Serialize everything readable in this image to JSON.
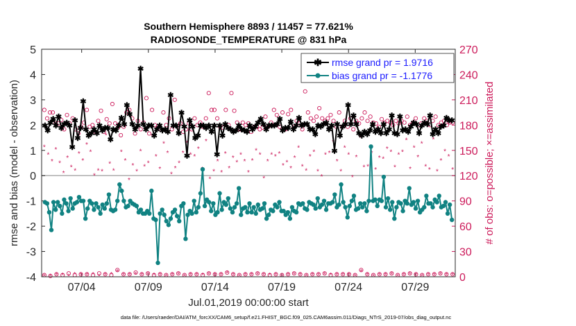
{
  "chart_data": {
    "type": "line",
    "title_line1": "Southern Hemisphere 8893 / 11457 = 77.621%",
    "title_line2": "RADIOSONDE_TEMPERATURE @ 831 hPa",
    "xlabel": "Jul.01,2019 00:00:00 start",
    "ylabel": "rmse and bias (model - observation)",
    "y2label": "# of obs: o=possible; ×=assimilated",
    "footer": "data file: /Users/raeder/DAI/ATM_forcXX/CAM6_setup/f.e21.FHIST_BGC.f09_025.CAM6assim.011/Diags_NTrS_2019-07/obs_diag_output.nc",
    "x_ticks": [
      {
        "day": 4,
        "label": "07/04"
      },
      {
        "day": 9,
        "label": "07/09"
      },
      {
        "day": 14,
        "label": "07/14"
      },
      {
        "day": 19,
        "label": "07/19"
      },
      {
        "day": 24,
        "label": "07/24"
      },
      {
        "day": 29,
        "label": "07/29"
      }
    ],
    "xlim": [
      1.0,
      32.0
    ],
    "ylim": [
      -4,
      5
    ],
    "y_ticks": [
      -4,
      -3,
      -2,
      -1,
      0,
      1,
      2,
      3,
      4,
      5
    ],
    "y2lim": [
      0,
      270
    ],
    "y2_ticks": [
      0,
      30,
      60,
      90,
      120,
      150,
      180,
      210,
      240,
      270
    ],
    "legend": [
      {
        "label": "rmse grand pr = 1.9716",
        "color": "#000000"
      },
      {
        "label": "bias grand pr = -1.1776",
        "color": "#108282"
      }
    ],
    "legend_position": "top-right",
    "colors": {
      "rmse": "#000000",
      "bias": "#108282",
      "obs": "#cc1a5a",
      "legend_text": "#1a1aff",
      "zero_line": "#b3b3b3"
    },
    "rmse": [
      2.0,
      1.8,
      2.1,
      2.25,
      2.0,
      2.35,
      1.9,
      2.05,
      2.1,
      2.0,
      1.15,
      2.2,
      1.5,
      1.9,
      2.95,
      1.85,
      1.6,
      1.7,
      1.85,
      1.7,
      2.0,
      1.8,
      1.9,
      1.9,
      1.45,
      1.85,
      1.8,
      2.0,
      2.3,
      2.05,
      2.8,
      2.45,
      2.05,
      1.85,
      2.0,
      4.25,
      2.05,
      1.85,
      2.0,
      2.0,
      1.6,
      1.85,
      2.0,
      1.8,
      1.85,
      1.75,
      3.2,
      2.0,
      2.0,
      1.7,
      2.5,
      1.95,
      0.8,
      2.2,
      1.95,
      1.5,
      1.6,
      2.0,
      2.0,
      1.9,
      2.0,
      1.75,
      2.0,
      0.85,
      2.0,
      1.6,
      2.05,
      1.9,
      1.85,
      1.75,
      1.8,
      2.0,
      1.85,
      1.8,
      1.75,
      2.0,
      1.85,
      1.95,
      2.1,
      2.25,
      2.05,
      1.85,
      2.0,
      2.0,
      2.0,
      2.05,
      2.25,
      1.8,
      1.9,
      1.9,
      2.15,
      1.85,
      2.0,
      2.3,
      2.0,
      2.05,
      2.05,
      1.85,
      1.85,
      1.65,
      2.0,
      1.95,
      2.05,
      2.1,
      1.85,
      2.0,
      1.0,
      2.05,
      1.6,
      1.95,
      2.05,
      2.8,
      2.05,
      2.4,
      2.05,
      1.7,
      1.6,
      1.75,
      1.65,
      1.8,
      2.05,
      1.75,
      1.85,
      1.7,
      2.05,
      1.7,
      1.85,
      2.4,
      1.7,
      1.65,
      2.35,
      1.8,
      1.85,
      1.75,
      1.95,
      2.1,
      2.05,
      1.7,
      2.0,
      2.1,
      2.05,
      2.4,
      1.65,
      1.85,
      1.7,
      1.95,
      2.0,
      2.3,
      2.2,
      2.2
    ],
    "bias": [
      -1.05,
      -1.1,
      -1.45,
      -2.15,
      -1.05,
      -1.35,
      -1.05,
      -1.2,
      -1.5,
      -0.95,
      -1.1,
      -1.4,
      -0.9,
      -1.3,
      -1.1,
      -1.05,
      -0.85,
      -1.0,
      -1.0,
      -1.7,
      -1.3,
      -1.0,
      -1.1,
      -1.35,
      -1.1,
      -1.25,
      -1.5,
      -1.15,
      -1.3,
      -1.1,
      -0.75,
      -1.35,
      -1.4,
      -1.35,
      -1.0,
      -0.35,
      -0.6,
      -1.0,
      -1.25,
      -1.2,
      -1.0,
      -1.1,
      -1.15,
      -1.2,
      -1.45,
      -1.35,
      -1.5,
      -1.5,
      -1.4,
      -1.5,
      -0.6,
      -1.7,
      -1.75,
      -3.45,
      -1.5,
      -1.35,
      -1.55,
      -1.8,
      -1.95,
      -1.7,
      -1.45,
      -1.35,
      -1.6,
      -1.8,
      -1.2,
      -1.1,
      -2.5,
      -1.55,
      -1.4,
      -1.5,
      -1.0,
      -1.45,
      -1.25,
      -0.7,
      0.25,
      -1.2,
      -0.95,
      -1.05,
      -1.4,
      -1.1,
      -1.55,
      -1.45,
      -0.7,
      -1.35,
      -1.05,
      -1.15,
      -0.9,
      -1.3,
      -1.45,
      -1.25,
      -1.1,
      -0.5,
      -1.55,
      -1.3,
      -1.25,
      -1.45,
      -1.1,
      -1.45,
      -1.25,
      -1.5,
      -1.15,
      -1.35,
      -1.3,
      -1.1,
      -1.7,
      -1.55,
      -1.35,
      -1.4,
      -1.15,
      -1.25,
      -1.05,
      -1.4,
      -1.4,
      -1.55,
      -1.45,
      -1.7,
      -1.25,
      -1.4,
      -1.45,
      -1.1,
      -1.15,
      -1.1,
      -1.3,
      -1.35,
      -1.05,
      -1.1,
      -1.15,
      -1.3,
      -0.9,
      -1.25,
      -1.15,
      -1.0,
      -1.35,
      -1.1,
      -1.1,
      -1.05,
      -0.75,
      -1.25,
      -1.15,
      -0.35,
      -1.05,
      -1.25,
      -1.65,
      -1.2,
      -1.0,
      -0.8,
      -1.35,
      -1.3,
      -1.1,
      -1.25,
      -1.1,
      -1.4,
      -1.0,
      1.15,
      -1.0,
      -0.95,
      -1.2,
      -0.95,
      -1.0,
      -0.05,
      -1.25,
      -0.9,
      -1.35,
      -1.05,
      -1.7,
      -1.25,
      -1.05,
      -1.1,
      -1.4,
      -1.0,
      -1.1,
      -0.5,
      -1.15,
      -1.05,
      -1.3,
      -1.0,
      -1.45,
      -1.35,
      -1.25,
      -0.8,
      -1.1,
      -1.1,
      -1.25,
      -0.95,
      -1.05,
      -0.8,
      -1.25,
      -1.2,
      -1.05,
      -1.5,
      -1.15,
      -1.75
    ],
    "obs_possible": [
      198,
      188,
      195,
      195,
      182,
      182,
      186,
      175,
      192,
      182,
      188,
      175,
      170,
      178,
      183,
      198,
      178,
      180,
      172,
      185,
      197,
      172,
      187,
      182,
      205,
      182,
      177,
      168,
      178,
      195,
      198,
      188,
      170,
      185,
      175,
      183,
      212,
      170,
      198,
      180,
      178,
      175,
      195,
      180,
      188,
      175,
      210,
      178,
      182,
      172,
      175,
      182,
      175,
      188,
      180,
      183,
      178,
      188,
      218,
      198,
      198,
      188,
      178,
      177,
      198,
      180,
      218,
      197,
      183,
      175,
      183,
      180,
      182,
      172,
      178,
      178,
      175,
      177,
      190,
      178,
      183,
      198,
      192,
      178,
      195,
      175,
      193,
      198,
      178,
      185,
      182,
      175,
      220,
      195,
      188,
      185,
      190,
      200,
      188,
      185,
      188,
      192,
      185,
      178,
      195,
      178,
      185,
      178,
      188,
      175,
      185,
      182,
      188,
      195,
      185,
      190,
      183,
      182,
      178,
      187,
      183,
      185,
      183,
      180,
      185,
      182,
      185,
      183,
      190,
      180,
      183,
      188,
      180,
      182,
      188,
      185,
      180,
      185,
      190,
      180,
      183,
      185,
      180,
      183,
      183
    ],
    "obs_assimilated": [
      154,
      145,
      137,
      151,
      135,
      123,
      141,
      130,
      126,
      146,
      138,
      157,
      148,
      120,
      126,
      125,
      168,
      134,
      126,
      180,
      148,
      138,
      115,
      132,
      125,
      149,
      131,
      135,
      167,
      143,
      128,
      158,
      147,
      122,
      129,
      135,
      147,
      159,
      145,
      143,
      152,
      128,
      161,
      116,
      125,
      137,
      124,
      146,
      129,
      141,
      136,
      145,
      137,
      124,
      138,
      150,
      145,
      117,
      137,
      145,
      143,
      146,
      132,
      136,
      129,
      141,
      153,
      131,
      126,
      143,
      148,
      125,
      119,
      145,
      147,
      160,
      137,
      125,
      153,
      145,
      118,
      142,
      165,
      130,
      131,
      147,
      127,
      141,
      140,
      152,
      148,
      130,
      145,
      148,
      162,
      128,
      153,
      142,
      158,
      131,
      127,
      163,
      125,
      138,
      149,
      143,
      127
    ],
    "obs_possible_low": [
      2,
      1,
      3,
      2,
      4,
      2,
      3,
      3,
      2,
      4,
      3,
      2,
      8,
      3,
      3,
      5,
      3,
      4,
      2,
      3,
      2,
      3,
      4,
      2,
      3,
      3,
      2,
      4,
      3,
      3,
      5,
      3,
      2,
      3,
      3,
      4,
      3,
      2,
      3,
      2,
      3,
      4,
      3,
      2,
      3,
      3,
      4,
      2,
      3,
      3,
      3,
      2,
      8,
      3,
      2,
      3,
      3,
      4,
      2,
      3,
      4,
      3,
      2,
      3,
      3,
      4,
      3,
      3
    ],
    "obs_assimilated_low": [
      1,
      1,
      2,
      2,
      1,
      3,
      2,
      2,
      3,
      1,
      2,
      3,
      6,
      2,
      2,
      3,
      2,
      3,
      2,
      2,
      1,
      2,
      3,
      1,
      2,
      2,
      2,
      3,
      2,
      2,
      4,
      2,
      1,
      2,
      2,
      3,
      2,
      2,
      2,
      1,
      2,
      3,
      2,
      1,
      2,
      2,
      3,
      2,
      2,
      2,
      2,
      1,
      6,
      2,
      1,
      2,
      2,
      3,
      1,
      2,
      3,
      2,
      1,
      2,
      2,
      3,
      2,
      2
    ]
  }
}
